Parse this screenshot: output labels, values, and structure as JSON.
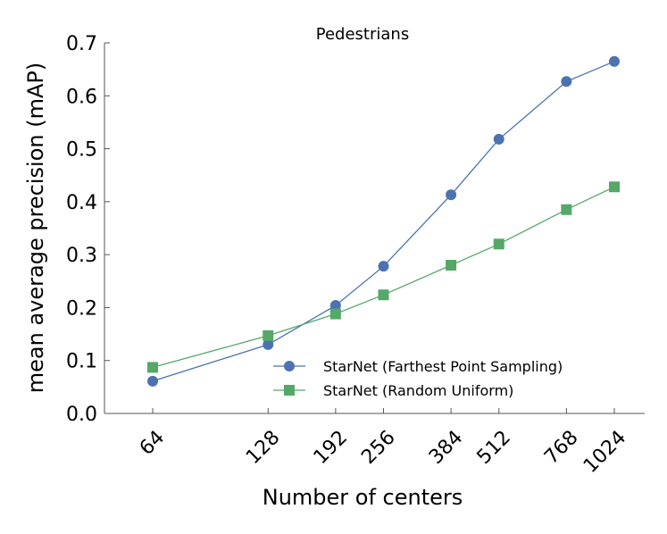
{
  "chart_data": {
    "type": "line",
    "title": "Pedestrians",
    "xlabel": "Number of centers",
    "ylabel": "mean average precision (mAP)",
    "x_scale": "log2",
    "x": [
      64,
      128,
      192,
      256,
      384,
      512,
      768,
      1024
    ],
    "x_tick_labels": [
      "64",
      "128",
      "192",
      "256",
      "384",
      "512",
      "768",
      "1024"
    ],
    "y_ticks": [
      "0.0",
      "0.1",
      "0.2",
      "0.3",
      "0.4",
      "0.5",
      "0.6",
      "0.7"
    ],
    "ylim": [
      0.0,
      0.7
    ],
    "grid": false,
    "legend_position": "lower-right",
    "series": [
      {
        "name": "StarNet (Farthest Point Sampling)",
        "color": "#4c72b0",
        "marker": "circle",
        "values": [
          0.061,
          0.13,
          0.204,
          0.278,
          0.413,
          0.518,
          0.627,
          0.665
        ]
      },
      {
        "name": "StarNet (Random Uniform)",
        "color": "#55a868",
        "marker": "square",
        "values": [
          0.087,
          0.147,
          0.188,
          0.224,
          0.28,
          0.32,
          0.385,
          0.428
        ]
      }
    ]
  }
}
